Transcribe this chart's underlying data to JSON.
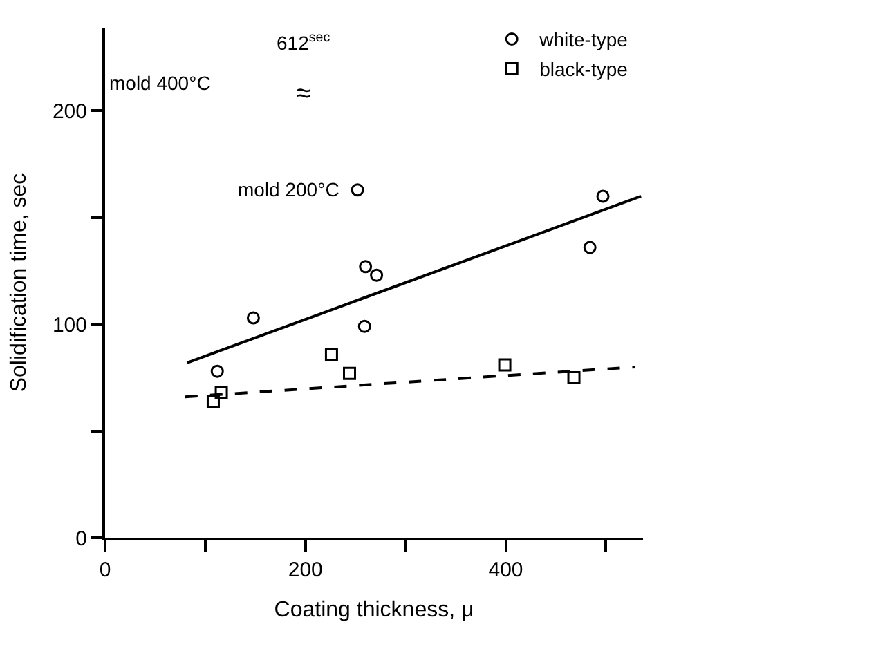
{
  "chart_data": {
    "type": "scatter",
    "xlabel": "Coating thickness, μ",
    "ylabel": "Solidification time, sec",
    "xlim": [
      0,
      537
    ],
    "ylim": [
      0,
      239
    ],
    "xticks": [
      0,
      {
        "value": 100,
        "label": null
      },
      200,
      {
        "value": 300,
        "label": null
      },
      400,
      {
        "value": 500,
        "label": null
      }
    ],
    "yticks": [
      0,
      {
        "value": 50,
        "label": null
      },
      100,
      {
        "value": 150,
        "label": null
      },
      200
    ],
    "legend": "top right",
    "series": [
      {
        "name": "white-type",
        "color": "#000000",
        "marker": "circle",
        "x": [
          112,
          148,
          260,
          271,
          259,
          497,
          484
        ],
        "values": [
          78,
          103,
          127,
          123,
          99,
          160,
          136
        ]
      },
      {
        "name": "black-type",
        "color": "#000000",
        "marker": "square",
        "x": [
          108,
          116,
          226,
          244,
          399,
          468
        ],
        "values": [
          64,
          68,
          86,
          77,
          81,
          75
        ]
      },
      {
        "color": "#000000",
        "marker": "circle",
        "x": [
          252
        ],
        "values": [
          163
        ]
      },
      {
        "type": "line",
        "color": "#000000",
        "marker": "none",
        "line_style": "solid",
        "x": [
          82,
          535
        ],
        "values": [
          82,
          160
        ]
      },
      {
        "type": "line",
        "color": "#000000",
        "marker": "none",
        "line_style": "dashed",
        "x": [
          80,
          529
        ],
        "values": [
          66,
          80
        ]
      }
    ],
    "annotations": [
      {
        "text": "mold 200°C",
        "x": 252,
        "y": 163
      },
      "mold 400°C",
      "612$^{sec}$",
      "≈"
    ]
  }
}
